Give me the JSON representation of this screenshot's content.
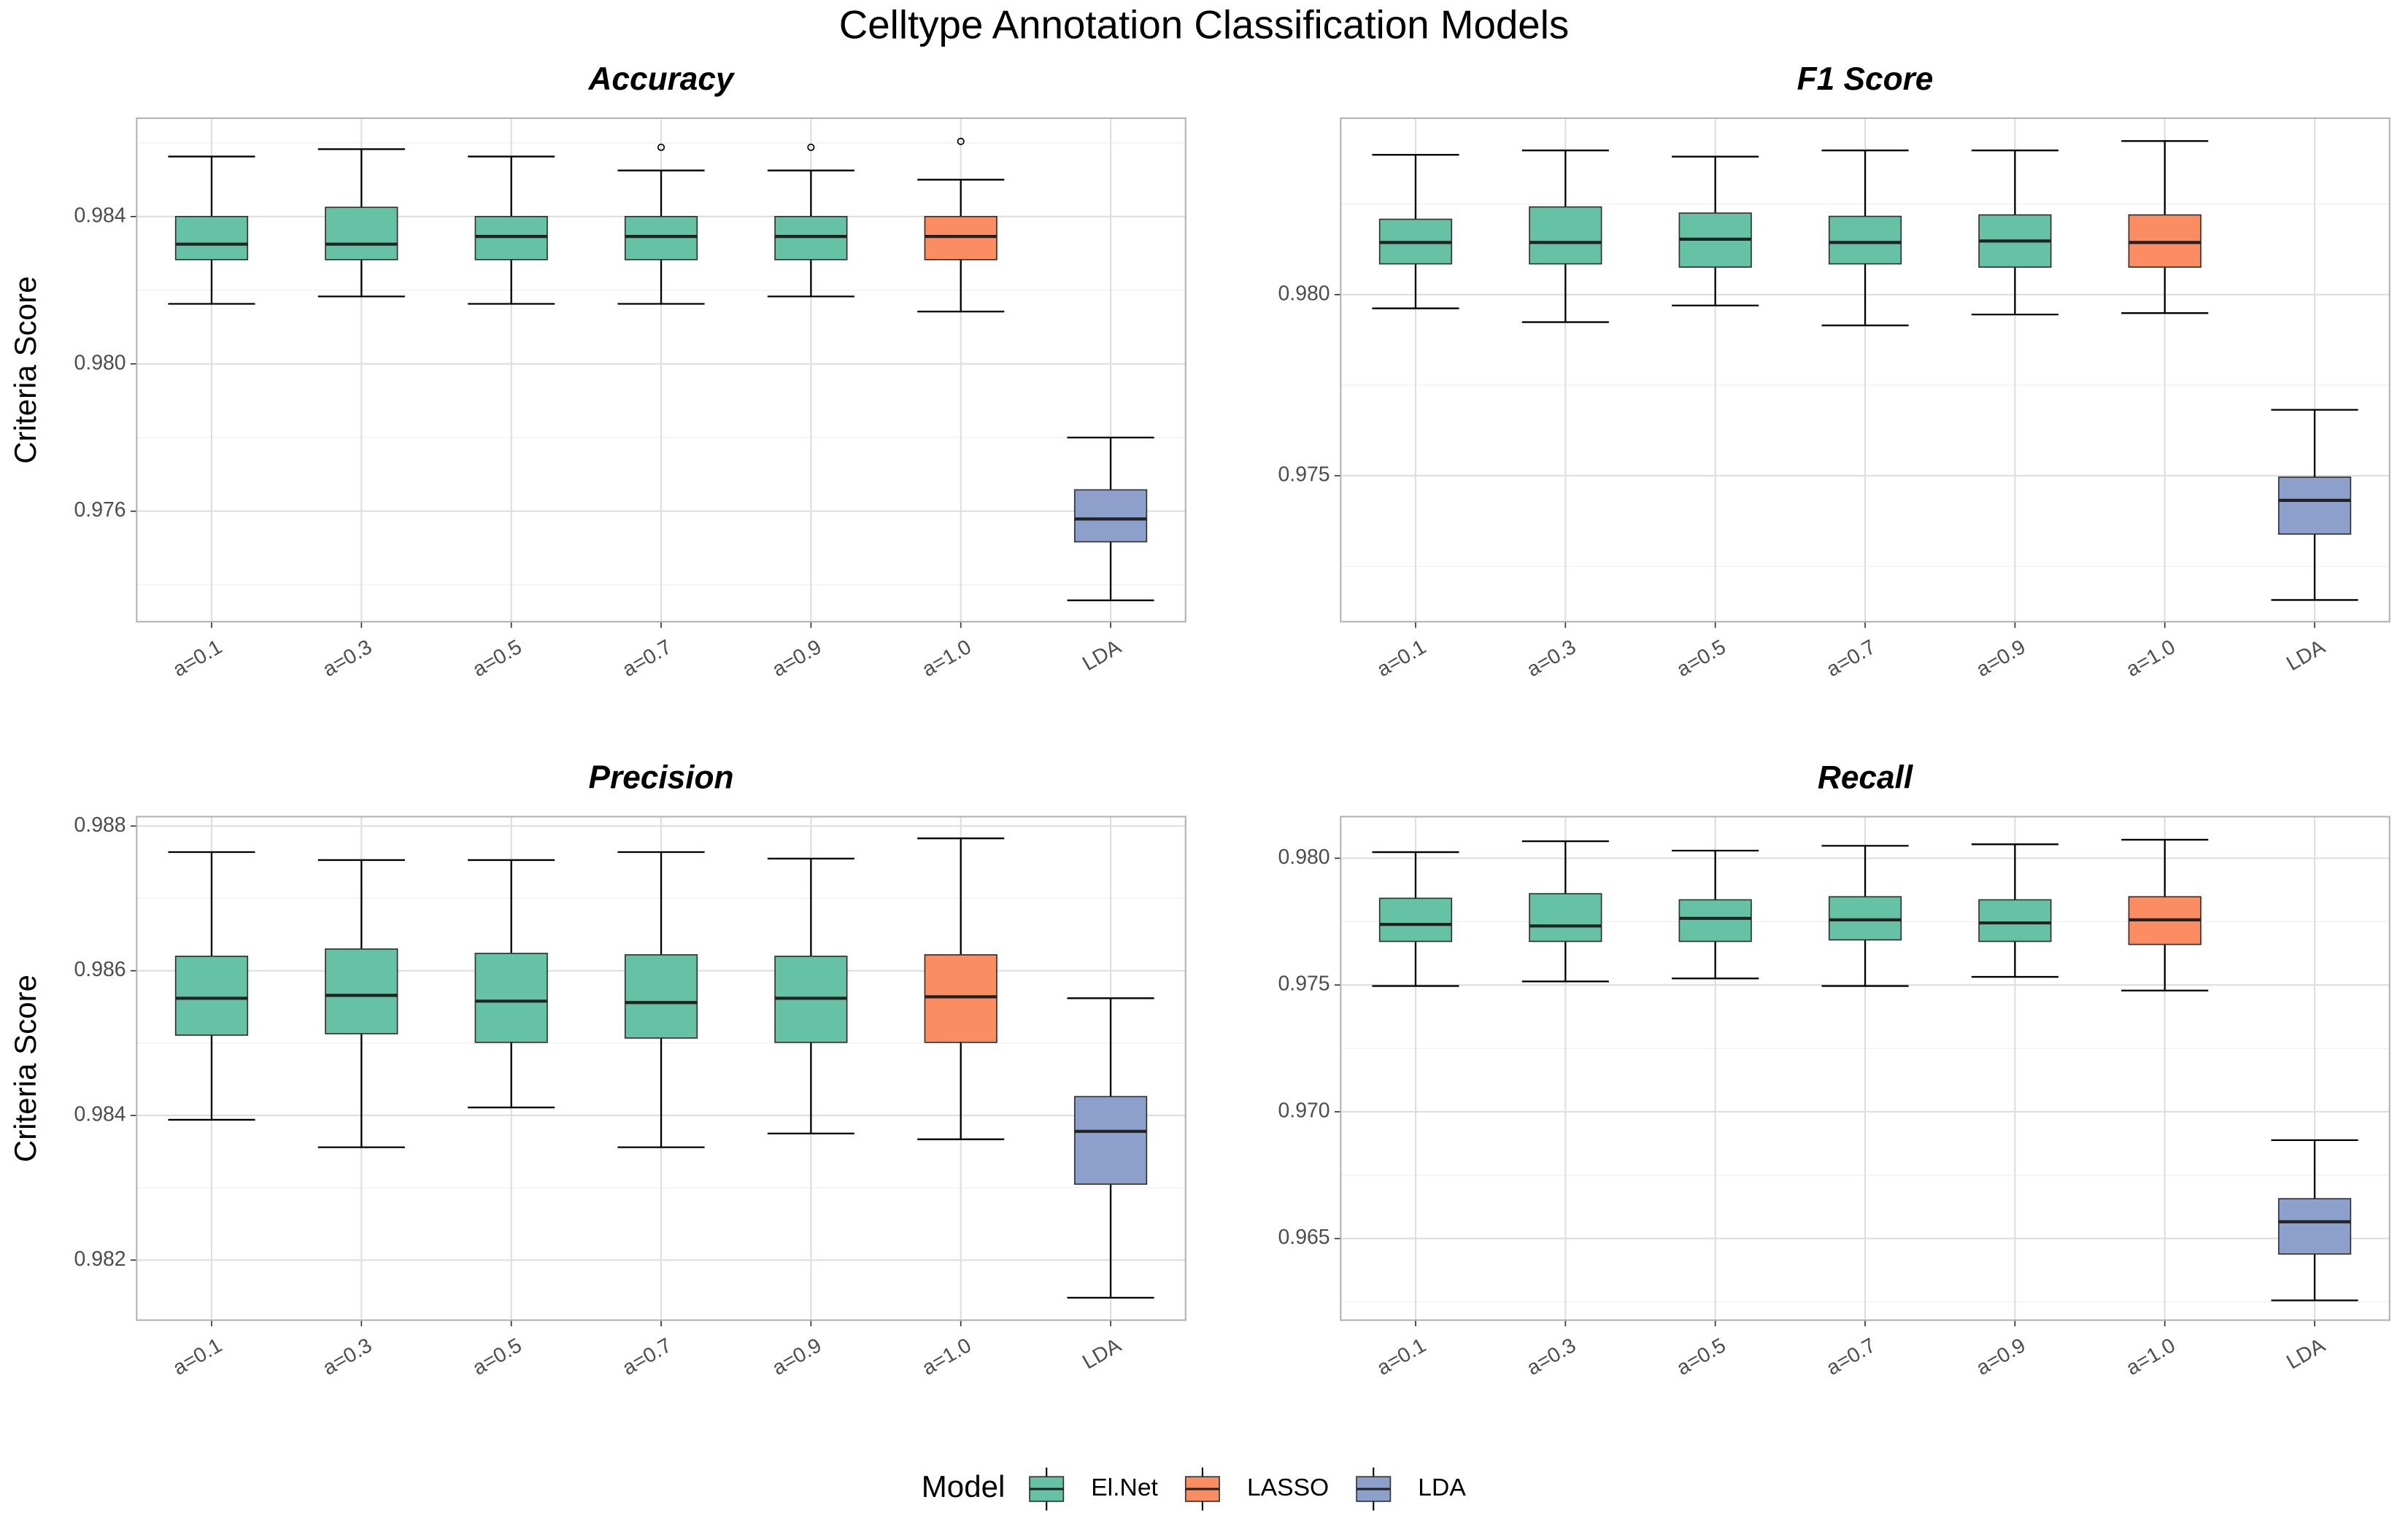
{
  "title": "Celltype Annotation Classification Models",
  "legend": {
    "title": "Model",
    "entries": [
      {
        "name": "El.Net",
        "color": "#66c2a5"
      },
      {
        "name": "LASSO",
        "color": "#fc8d62"
      },
      {
        "name": "LDA",
        "color": "#8da0cb"
      }
    ]
  },
  "chart_data": [
    {
      "type": "box",
      "title": "Accuracy",
      "y_label": "Criteria Score",
      "categories": [
        "a=0.1",
        "a=0.3",
        "a=0.5",
        "a=0.7",
        "a=0.9",
        "a=1.0",
        "LDA"
      ],
      "box_colors": [
        "#66c2a5",
        "#66c2a5",
        "#66c2a5",
        "#66c2a5",
        "#66c2a5",
        "#fc8d62",
        "#8da0cb"
      ],
      "min": [
        0.98163,
        0.98183,
        0.98163,
        0.98163,
        0.98183,
        0.98142,
        0.97358
      ],
      "q1": [
        0.98283,
        0.98283,
        0.98283,
        0.98283,
        0.98283,
        0.98283,
        0.97517
      ],
      "median": [
        0.98325,
        0.98325,
        0.98346,
        0.98346,
        0.98346,
        0.98346,
        0.97579
      ],
      "q3": [
        0.984,
        0.98425,
        0.984,
        0.984,
        0.984,
        0.984,
        0.97658
      ],
      "max": [
        0.98563,
        0.98583,
        0.98563,
        0.98525,
        0.98525,
        0.985,
        0.978
      ],
      "outliers": [
        [],
        [],
        [],
        [
          0.98588
        ],
        [
          0.98588
        ],
        [
          0.98604
        ],
        []
      ],
      "ylim": [
        0.973,
        0.98667
      ],
      "yticks": [
        0.976,
        {
          "value": 0.98,
          "label": "0.980"
        },
        0.984
      ],
      "minor_yticks": [
        0.974,
        0.978,
        0.982,
        0.986
      ],
      "grid": true
    },
    {
      "type": "box",
      "title": "F1 Score",
      "categories": [
        "a=0.1",
        "a=0.3",
        "a=0.5",
        "a=0.7",
        "a=0.9",
        "a=1.0",
        "LDA"
      ],
      "box_colors": [
        "#66c2a5",
        "#66c2a5",
        "#66c2a5",
        "#66c2a5",
        "#66c2a5",
        "#fc8d62",
        "#8da0cb"
      ],
      "min": [
        0.97962,
        0.97924,
        0.9797,
        0.97915,
        0.97945,
        0.97949,
        0.97157
      ],
      "q1": [
        0.98085,
        0.98085,
        0.98076,
        0.98085,
        0.98076,
        0.98076,
        0.97339
      ],
      "median": [
        0.98144,
        0.98144,
        0.98153,
        0.98144,
        0.98148,
        0.98144,
        0.97432
      ],
      "q3": [
        0.98208,
        0.98242,
        0.98225,
        0.98216,
        0.9822,
        0.9822,
        0.97496
      ],
      "max": [
        0.98386,
        0.98398,
        0.98381,
        0.98398,
        0.98398,
        0.98424,
        0.97682
      ],
      "outliers": [
        [],
        [],
        [],
        [],
        [],
        [],
        []
      ],
      "ylim": [
        0.97097,
        0.98487
      ],
      "yticks": [
        0.975,
        {
          "value": 0.98,
          "label": "0.980"
        }
      ],
      "minor_yticks": [
        0.9725,
        0.9775,
        0.9825
      ],
      "grid": true
    },
    {
      "type": "box",
      "title": "Precision",
      "y_label": "Criteria Score",
      "categories": [
        "a=0.1",
        "a=0.3",
        "a=0.5",
        "a=0.7",
        "a=0.9",
        "a=1.0",
        "LDA"
      ],
      "box_colors": [
        "#66c2a5",
        "#66c2a5",
        "#66c2a5",
        "#66c2a5",
        "#66c2a5",
        "#fc8d62",
        "#8da0cb"
      ],
      "min": [
        0.98394,
        0.98356,
        0.98411,
        0.98356,
        0.98375,
        0.98367,
        0.98148
      ],
      "q1": [
        0.98511,
        0.98513,
        0.98501,
        0.98507,
        0.98501,
        0.98501,
        0.98305
      ],
      "median": [
        0.98562,
        0.98566,
        0.98558,
        0.98556,
        0.98562,
        0.98564,
        0.98378
      ],
      "q3": [
        0.9862,
        0.9863,
        0.98624,
        0.98622,
        0.9862,
        0.98622,
        0.98426
      ],
      "max": [
        0.98764,
        0.98753,
        0.98753,
        0.98764,
        0.98755,
        0.98783,
        0.98562
      ],
      "outliers": [
        [],
        [],
        [],
        [],
        [],
        [],
        []
      ],
      "ylim": [
        0.98117,
        0.98813
      ],
      "yticks": [
        0.982,
        0.984,
        0.986,
        0.988
      ],
      "minor_yticks": [
        0.983,
        0.985,
        0.987
      ],
      "grid": true
    },
    {
      "type": "box",
      "title": "Recall",
      "categories": [
        "a=0.1",
        "a=0.3",
        "a=0.5",
        "a=0.7",
        "a=0.9",
        "a=1.0",
        "LDA"
      ],
      "box_colors": [
        "#66c2a5",
        "#66c2a5",
        "#66c2a5",
        "#66c2a5",
        "#66c2a5",
        "#fc8d62",
        "#8da0cb"
      ],
      "min": [
        0.97496,
        0.97514,
        0.97526,
        0.97496,
        0.97532,
        0.97478,
        0.96256
      ],
      "q1": [
        0.97672,
        0.97672,
        0.97672,
        0.97678,
        0.97672,
        0.9766,
        0.96439
      ],
      "median": [
        0.97739,
        0.97733,
        0.97763,
        0.97757,
        0.97745,
        0.97757,
        0.96566
      ],
      "q3": [
        0.97842,
        0.9786,
        0.97836,
        0.97848,
        0.97836,
        0.97848,
        0.96657
      ],
      "max": [
        0.98024,
        0.98067,
        0.9803,
        0.98049,
        0.98055,
        0.98073,
        0.96888
      ],
      "outliers": [
        [],
        [],
        [],
        [],
        [],
        [],
        []
      ],
      "ylim": [
        0.96178,
        0.98164
      ],
      "yticks": [
        0.965,
        {
          "value": 0.97,
          "label": "0.970"
        },
        0.975,
        {
          "value": 0.98,
          "label": "0.980"
        }
      ],
      "minor_yticks": [
        0.9625,
        0.9675,
        0.9725,
        0.9775
      ],
      "grid": true
    }
  ]
}
